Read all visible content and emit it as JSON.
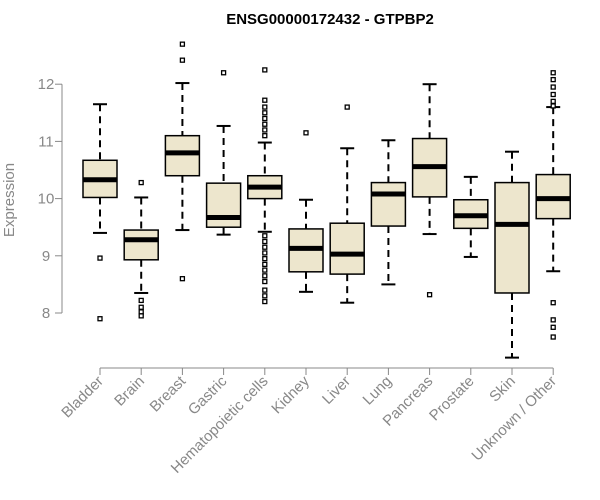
{
  "chart_data": {
    "type": "boxplot",
    "title": "ENSG00000172432 - GTPBP2",
    "xlabel": "",
    "ylabel": "Expression",
    "ylim": [
      7.1,
      12.95
    ],
    "yticks": [
      8,
      9,
      10,
      11,
      12
    ],
    "box_fill": "#ede6cd",
    "median_color": "#000000",
    "axis_color": "#888888",
    "categories": [
      "Bladder",
      "Brain",
      "Breast",
      "Gastric",
      "Hematopoietic cells",
      "Kidney",
      "Liver",
      "Lung",
      "Pancreas",
      "Prostate",
      "Skin",
      "Unknown / Other"
    ],
    "boxes": [
      {
        "name": "Bladder",
        "whisker_low": 9.4,
        "q1": 10.02,
        "median": 10.33,
        "q3": 10.67,
        "whisker_high": 11.65,
        "outliers": [
          8.96,
          7.9
        ]
      },
      {
        "name": "Brain",
        "whisker_low": 8.35,
        "q1": 8.93,
        "median": 9.28,
        "q3": 9.45,
        "whisker_high": 10.02,
        "outliers": [
          10.28,
          8.22,
          8.1,
          8.02,
          7.95
        ]
      },
      {
        "name": "Breast",
        "whisker_low": 9.45,
        "q1": 10.4,
        "median": 10.8,
        "q3": 11.1,
        "whisker_high": 12.02,
        "outliers": [
          12.7,
          12.42,
          8.6
        ]
      },
      {
        "name": "Gastric",
        "whisker_low": 9.37,
        "q1": 9.5,
        "median": 9.67,
        "q3": 10.27,
        "whisker_high": 11.27,
        "outliers": [
          12.2
        ]
      },
      {
        "name": "Hematopoietic cells",
        "whisker_low": 9.42,
        "q1": 10.0,
        "median": 10.2,
        "q3": 10.4,
        "whisker_high": 10.98,
        "outliers": [
          12.25,
          11.72,
          11.6,
          11.5,
          11.4,
          11.3,
          11.2,
          11.1,
          9.35,
          9.25,
          9.15,
          9.05,
          8.95,
          8.85,
          8.75,
          8.65,
          8.55,
          8.4,
          8.3,
          8.2
        ]
      },
      {
        "name": "Kidney",
        "whisker_low": 8.37,
        "q1": 8.72,
        "median": 9.13,
        "q3": 9.47,
        "whisker_high": 9.98,
        "outliers": [
          11.15
        ]
      },
      {
        "name": "Liver",
        "whisker_low": 8.18,
        "q1": 8.68,
        "median": 9.03,
        "q3": 9.57,
        "whisker_high": 10.88,
        "outliers": [
          11.6
        ]
      },
      {
        "name": "Lung",
        "whisker_low": 8.5,
        "q1": 9.52,
        "median": 10.08,
        "q3": 10.28,
        "whisker_high": 11.02,
        "outliers": []
      },
      {
        "name": "Pancreas",
        "whisker_low": 9.38,
        "q1": 10.03,
        "median": 10.56,
        "q3": 11.05,
        "whisker_high": 12.0,
        "outliers": [
          8.32
        ]
      },
      {
        "name": "Prostate",
        "whisker_low": 8.98,
        "q1": 9.48,
        "median": 9.7,
        "q3": 9.98,
        "whisker_high": 10.38,
        "outliers": []
      },
      {
        "name": "Skin",
        "whisker_low": 7.22,
        "q1": 8.35,
        "median": 9.55,
        "q3": 10.28,
        "whisker_high": 10.82,
        "outliers": []
      },
      {
        "name": "Unknown / Other",
        "whisker_low": 8.73,
        "q1": 9.65,
        "median": 10.0,
        "q3": 10.42,
        "whisker_high": 11.6,
        "outliers": [
          12.2,
          12.08,
          11.95,
          11.82,
          11.7,
          11.62,
          8.18,
          7.88,
          7.75,
          7.58
        ]
      }
    ]
  }
}
